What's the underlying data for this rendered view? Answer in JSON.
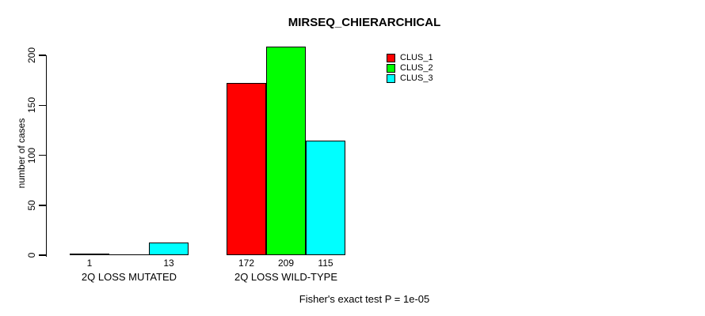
{
  "chart_data": {
    "type": "bar",
    "title": "MIRSEQ_CHIERARCHICAL",
    "xlabel": "",
    "ylabel": "number of cases",
    "categories": [
      "2Q LOSS MUTATED",
      "2Q LOSS WILD-TYPE"
    ],
    "series": [
      {
        "name": "CLUS_1",
        "color": "#ff0000",
        "values": [
          1,
          172
        ]
      },
      {
        "name": "CLUS_2",
        "color": "#00ff00",
        "values": [
          0,
          209
        ]
      },
      {
        "name": "CLUS_3",
        "color": "#00ffff",
        "values": [
          13,
          115
        ]
      }
    ],
    "value_labels": [
      [
        "1",
        "",
        "13"
      ],
      [
        "172",
        "209",
        "115"
      ]
    ],
    "yticks": [
      0,
      50,
      100,
      150,
      200
    ],
    "ylim": [
      0,
      214
    ],
    "grid": false,
    "legend_position": "top-right",
    "bar_border_color": "#000000",
    "axis_color": "#000000",
    "background_color": "#ffffff",
    "annotation": "Fisher's exact test P = 1e-05"
  }
}
